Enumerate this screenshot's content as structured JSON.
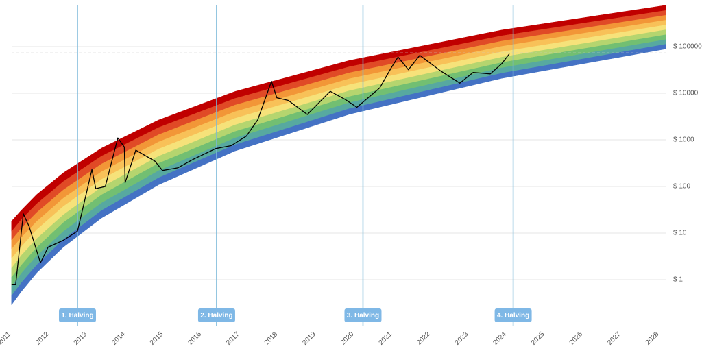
{
  "chart_data": {
    "type": "line",
    "log_scale": true,
    "grid": true,
    "xlim": [
      2011,
      2028.3
    ],
    "xticks": [
      2011,
      2012,
      2013,
      2014,
      2015,
      2016,
      2017,
      2018,
      2019,
      2020,
      2021,
      2022,
      2023,
      2024,
      2025,
      2026,
      2027,
      2028
    ],
    "ylim": [
      0.1,
      800000
    ],
    "yticks": [
      {
        "value": 1,
        "label": "$ 1"
      },
      {
        "value": 10,
        "label": "$ 10"
      },
      {
        "value": 100,
        "label": "$ 100"
      },
      {
        "value": 1000,
        "label": "$ 1000"
      },
      {
        "value": 10000,
        "label": "$ 10000"
      },
      {
        "value": 100000,
        "label": "$ 100000"
      }
    ],
    "band_x": [
      2011.14,
      2011.4,
      2011.8,
      2012.5,
      2013.5,
      2015,
      2017,
      2020,
      2024,
      2028.3
    ],
    "band_colors": [
      "#4472c4",
      "#57a9a0",
      "#72bf72",
      "#b5d56f",
      "#f6e27a",
      "#f8c158",
      "#f29637",
      "#e04a26",
      "#c00000"
    ],
    "band_edges": [
      [
        0.29,
        0.56,
        1.4,
        5.0,
        21,
        109,
        575,
        3540,
        20900,
        89300
      ],
      [
        0.46,
        0.88,
        2.1,
        7.4,
        31,
        156,
        798,
        4750,
        27300,
        114000
      ],
      [
        0.73,
        1.4,
        3.3,
        11,
        45,
        222,
        1110,
        6380,
        35600,
        144000
      ],
      [
        1.15,
        2.1,
        5.0,
        17,
        67,
        318,
        1530,
        8590,
        46300,
        183000
      ],
      [
        1.8,
        3.4,
        7.7,
        25,
        98,
        453,
        2120,
        11500,
        60400,
        233000
      ],
      [
        2.9,
        5.2,
        12,
        38,
        144,
        646,
        2940,
        15500,
        78700,
        296000
      ],
      [
        4.6,
        8.2,
        18,
        57,
        211,
        920,
        4080,
        20800,
        103000,
        376000
      ],
      [
        7.2,
        13,
        28,
        86,
        309,
        1310,
        5660,
        27900,
        134000,
        478000
      ],
      [
        11,
        20,
        43,
        130,
        454,
        1870,
        7840,
        37600,
        174000,
        607000
      ],
      [
        18,
        31,
        67,
        196,
        665,
        2670,
        10900,
        50500,
        227000,
        771000
      ]
    ],
    "series": [
      {
        "color": "#000000",
        "x": [
          2011.14,
          2011.25,
          2011.45,
          2011.6,
          2011.9,
          2012.1,
          2012.5,
          2012.87,
          2013.25,
          2013.35,
          2013.6,
          2013.93,
          2014.1,
          2014.12,
          2014.4,
          2014.9,
          2015.1,
          2015.5,
          2015.9,
          2016.5,
          2016.9,
          2017.3,
          2017.6,
          2017.96,
          2018.1,
          2018.4,
          2018.9,
          2019.5,
          2019.9,
          2020.2,
          2020.8,
          2021.1,
          2021.28,
          2021.55,
          2021.85,
          2022.4,
          2022.9,
          2023.25,
          2023.7,
          2024.0,
          2024.2
        ],
        "values": [
          0.8,
          0.8,
          26,
          14,
          2.3,
          5,
          7,
          11,
          230,
          90,
          100,
          1100,
          700,
          120,
          600,
          350,
          220,
          250,
          380,
          650,
          750,
          1200,
          2700,
          18000,
          8000,
          7000,
          3500,
          11000,
          7300,
          5000,
          13000,
          35000,
          60000,
          32000,
          65000,
          30000,
          16500,
          28000,
          26000,
          43000,
          70000
        ]
      }
    ],
    "reference_line": 73000,
    "halvings": [
      {
        "x": 2012.87,
        "label": "1. Halving"
      },
      {
        "x": 2016.52,
        "label": "2. Halving"
      },
      {
        "x": 2020.36,
        "label": "3. Halving"
      },
      {
        "x": 2024.3,
        "label": "4. Halving"
      }
    ]
  }
}
